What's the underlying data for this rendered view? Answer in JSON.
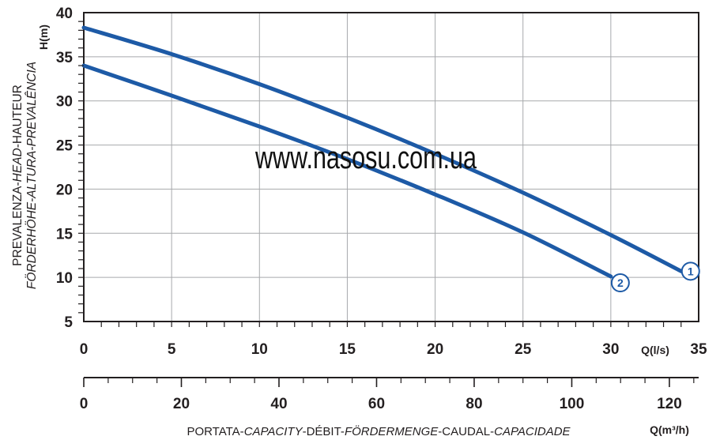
{
  "chart_data": {
    "type": "line",
    "x_axis": {
      "ticks": [
        "0",
        "5",
        "10",
        "15",
        "20",
        "25",
        "30",
        "35"
      ],
      "range": [
        0,
        35
      ],
      "unit_label": "Q(l/s)"
    },
    "x_axis_secondary": {
      "ticks": [
        "0",
        "20",
        "40",
        "60",
        "80",
        "100",
        "120"
      ],
      "range": [
        0,
        126
      ],
      "unit_label": "Q(m³/h)"
    },
    "y_axis": {
      "ticks": [
        "5",
        "10",
        "15",
        "20",
        "25",
        "30",
        "35",
        "40"
      ],
      "range": [
        5,
        40
      ],
      "unit_label": "H(m)"
    },
    "ylabel_line1": "PREVALENZA-HEAD-HAUTEUR",
    "ylabel_line1_parts": [
      "PREVALENZA-",
      "HEAD",
      "-HAUTEUR"
    ],
    "ylabel_line2": "FÖRDERHÖHE-ALTURA-PREVALÊNCIA",
    "xlabel": "PORTATA-CAPACITY-DÉBIT-FÖRDERMENGE-CAUDAL-CAPACIDADE",
    "xlabel_parts": [
      "PORTATA-",
      "CAPACITY",
      "-DÉBIT-",
      "FÖRDERMENGE",
      "-CAUDAL-",
      "CAPACIDADE"
    ],
    "grid": true,
    "watermark": "www.nasosu.com.ua",
    "series_color": "#1d5aa6",
    "series": [
      {
        "label": "1",
        "x": [
          0,
          5,
          10,
          15,
          20,
          25,
          30,
          34
        ],
        "y": [
          38.3,
          35.3,
          31.9,
          28.1,
          24.0,
          19.6,
          14.8,
          10.7
        ]
      },
      {
        "label": "2",
        "x": [
          0,
          5,
          10,
          15,
          20,
          25,
          30
        ],
        "y": [
          34.0,
          30.6,
          27.1,
          23.4,
          19.4,
          15.1,
          10.1
        ]
      }
    ]
  }
}
